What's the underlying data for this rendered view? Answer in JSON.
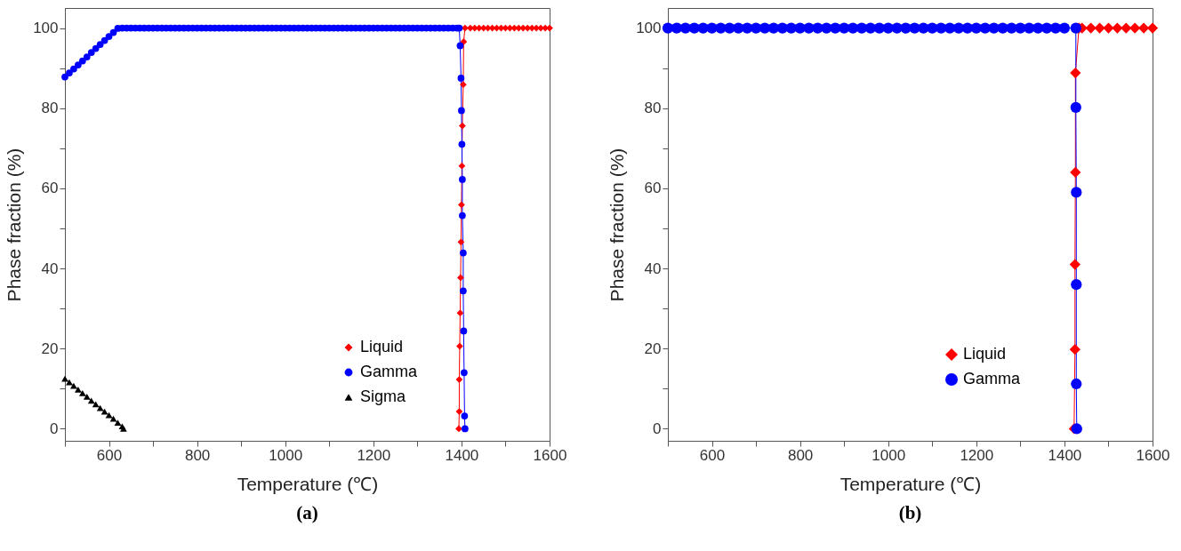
{
  "chart_data": [
    {
      "type": "line",
      "title": "(a)",
      "xlabel": "Temperature (℃)",
      "ylabel": "Phase fraction (%)",
      "xlim": [
        500,
        1600
      ],
      "ylim": [
        -3,
        105
      ],
      "xticks": [
        {
          "value": 500,
          "label": null
        },
        600,
        {
          "value": 700,
          "label": null
        },
        800,
        {
          "value": 900,
          "label": null
        },
        1000,
        {
          "value": 1100,
          "label": null
        },
        1200,
        {
          "value": 1300,
          "label": null
        },
        1400,
        {
          "value": 1500,
          "label": null
        },
        1600
      ],
      "yticks": [
        0,
        {
          "value": 10,
          "label": null
        },
        20,
        {
          "value": 30,
          "label": null
        },
        40,
        {
          "value": 50,
          "label": null
        },
        60,
        {
          "value": 70,
          "label": null
        },
        80,
        {
          "value": 90,
          "label": null
        },
        100
      ],
      "legend": "bottom right",
      "grid": false,
      "line_style": "solid",
      "series": [
        {
          "name": "Liquid",
          "color": "#ff0000",
          "marker": "diamond",
          "x": [
            1394,
            1395,
            1395,
            1396,
            1397,
            1398,
            1399,
            1400,
            1401,
            1402,
            1404,
            1405,
            1408,
            1420,
            1430,
            1440,
            1450,
            1460,
            1470,
            1480,
            1490,
            1500,
            1510,
            1520,
            1530,
            1540,
            1550,
            1560,
            1570,
            1580,
            1590,
            1600
          ],
          "values": [
            0,
            4.3,
            12.3,
            20.6,
            28.9,
            37.7,
            46.6,
            55.9,
            65.6,
            75.6,
            85.9,
            96.6,
            100,
            100,
            100,
            100,
            100,
            100,
            100,
            100,
            100,
            100,
            100,
            100,
            100,
            100,
            100,
            100,
            100,
            100,
            100,
            100
          ]
        },
        {
          "name": "Gamma",
          "color": "#0000ff",
          "marker": "circle",
          "x": [
            500,
            510,
            520,
            530,
            540,
            550,
            560,
            570,
            580,
            590,
            600,
            610,
            620,
            630,
            640,
            650,
            660,
            670,
            680,
            690,
            700,
            710,
            720,
            730,
            740,
            750,
            760,
            770,
            780,
            790,
            800,
            810,
            820,
            830,
            840,
            850,
            860,
            870,
            880,
            890,
            900,
            910,
            920,
            930,
            940,
            950,
            960,
            970,
            980,
            990,
            1000,
            1010,
            1020,
            1030,
            1040,
            1050,
            1060,
            1070,
            1080,
            1090,
            1100,
            1110,
            1120,
            1130,
            1140,
            1150,
            1160,
            1170,
            1180,
            1190,
            1200,
            1210,
            1220,
            1230,
            1240,
            1250,
            1260,
            1270,
            1280,
            1290,
            1300,
            1310,
            1320,
            1330,
            1340,
            1350,
            1360,
            1370,
            1380,
            1390,
            1395,
            1397,
            1399,
            1400,
            1401,
            1402,
            1402,
            1404,
            1404,
            1405,
            1406,
            1407,
            1408
          ],
          "values": [
            87.8,
            88.8,
            89.8,
            90.8,
            91.8,
            92.8,
            93.9,
            94.9,
            95.9,
            96.9,
            97.9,
            98.9,
            99.9,
            100,
            100,
            100,
            100,
            100,
            100,
            100,
            100,
            100,
            100,
            100,
            100,
            100,
            100,
            100,
            100,
            100,
            100,
            100,
            100,
            100,
            100,
            100,
            100,
            100,
            100,
            100,
            100,
            100,
            100,
            100,
            100,
            100,
            100,
            100,
            100,
            100,
            100,
            100,
            100,
            100,
            100,
            100,
            100,
            100,
            100,
            100,
            100,
            100,
            100,
            100,
            100,
            100,
            100,
            100,
            100,
            100,
            100,
            100,
            100,
            100,
            100,
            100,
            100,
            100,
            100,
            100,
            100,
            100,
            100,
            100,
            100,
            100,
            100,
            100,
            100,
            100,
            100,
            95.6,
            87.5,
            79.4,
            71,
            62.2,
            53.2,
            43.9,
            34.4,
            24.4,
            14,
            3.2,
            0
          ]
        },
        {
          "name": "Sigma",
          "color": "#000000",
          "marker": "triangle",
          "x": [
            500,
            510,
            520,
            530,
            540,
            550,
            560,
            570,
            580,
            590,
            600,
            610,
            620,
            630,
            633
          ],
          "values": [
            12.5,
            11.6,
            10.7,
            9.8,
            8.9,
            8.0,
            7.0,
            6.1,
            5.2,
            4.3,
            3.4,
            2.5,
            1.5,
            0.6,
            0
          ]
        }
      ]
    },
    {
      "type": "line",
      "title": "(b)",
      "xlabel": "Temperature (℃)",
      "ylabel": "Phase fraction (%)",
      "xlim": [
        500,
        1600
      ],
      "ylim": [
        -3,
        105
      ],
      "xticks": [
        {
          "value": 500,
          "label": null
        },
        600,
        {
          "value": 700,
          "label": null
        },
        800,
        {
          "value": 900,
          "label": null
        },
        1000,
        {
          "value": 1100,
          "label": null
        },
        1200,
        {
          "value": 1300,
          "label": null
        },
        1400,
        {
          "value": 1500,
          "label": null
        },
        1600
      ],
      "yticks": [
        0,
        {
          "value": 10,
          "label": null
        },
        20,
        {
          "value": 30,
          "label": null
        },
        40,
        {
          "value": 50,
          "label": null
        },
        60,
        {
          "value": 70,
          "label": null
        },
        80,
        {
          "value": 90,
          "label": null
        },
        100
      ],
      "legend": "bottom right",
      "grid": false,
      "line_style": "solid",
      "series": [
        {
          "name": "Liquid",
          "color": "#ff0000",
          "marker": "diamond",
          "x": [
            1422,
            1424,
            1424,
            1425,
            1425,
            1433,
            1440,
            1460,
            1480,
            1500,
            1520,
            1540,
            1560,
            1580,
            1600
          ],
          "values": [
            0,
            19.8,
            41,
            64,
            88.8,
            100,
            100,
            100,
            100,
            100,
            100,
            100,
            100,
            100,
            100
          ]
        },
        {
          "name": "Gamma",
          "color": "#0000ff",
          "marker": "circle",
          "x": [
            500,
            520,
            540,
            560,
            580,
            600,
            620,
            640,
            660,
            680,
            700,
            720,
            740,
            760,
            780,
            800,
            820,
            840,
            860,
            880,
            900,
            920,
            940,
            960,
            980,
            1000,
            1020,
            1040,
            1060,
            1080,
            1100,
            1120,
            1140,
            1160,
            1180,
            1200,
            1220,
            1240,
            1260,
            1280,
            1300,
            1320,
            1340,
            1360,
            1380,
            1400,
            1426,
            1426,
            1427,
            1427,
            1427,
            1428
          ],
          "values": [
            100,
            100,
            100,
            100,
            100,
            100,
            100,
            100,
            100,
            100,
            100,
            100,
            100,
            100,
            100,
            100,
            100,
            100,
            100,
            100,
            100,
            100,
            100,
            100,
            100,
            100,
            100,
            100,
            100,
            100,
            100,
            100,
            100,
            100,
            100,
            100,
            100,
            100,
            100,
            100,
            100,
            100,
            100,
            100,
            100,
            100,
            100,
            80.2,
            59,
            36,
            11.2,
            0
          ]
        }
      ]
    }
  ]
}
